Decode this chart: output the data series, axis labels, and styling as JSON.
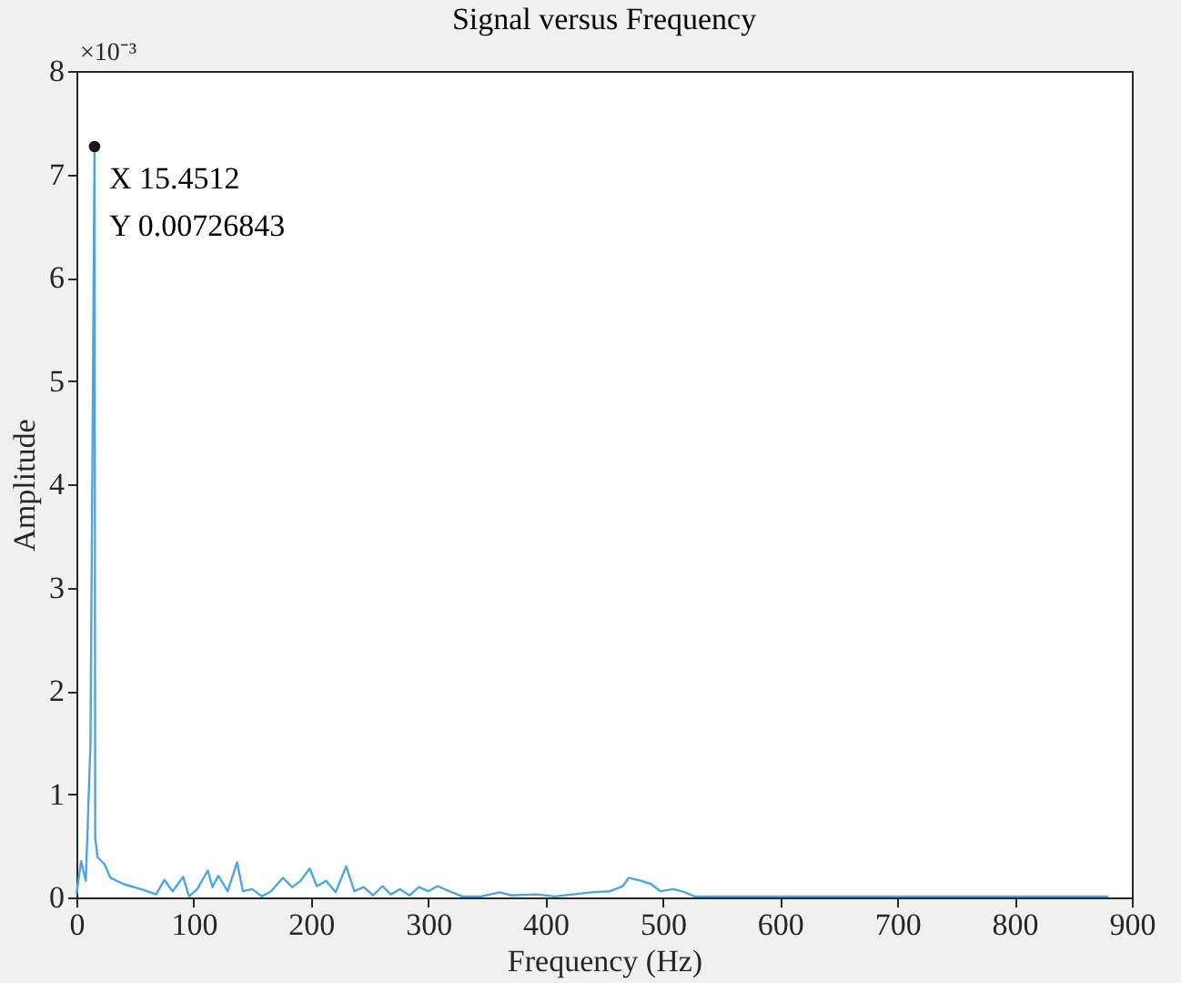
{
  "chart_data": {
    "type": "line",
    "title": "Signal versus Frequency",
    "xlabel": "Frequency (Hz)",
    "ylabel": "Amplitude",
    "series": [
      {
        "color": "#4da6dc",
        "x": [
          0,
          4,
          8,
          12,
          15.4512,
          16,
          18,
          24,
          29,
          40,
          55,
          68,
          75,
          82,
          91,
          96,
          103,
          112,
          116,
          121,
          129,
          137,
          142,
          150,
          158,
          166,
          176,
          184,
          191,
          199,
          205,
          213,
          221,
          230,
          237,
          245,
          253,
          261,
          268,
          276,
          284,
          292,
          300,
          308,
          318,
          329,
          345,
          361,
          371,
          392,
          408,
          439,
          455,
          466,
          471,
          482,
          490,
          498,
          509,
          519,
          527,
          567,
          600,
          650,
          700,
          750,
          800,
          850,
          880
        ],
        "values": [
          0.03,
          0.35,
          0.16,
          1.5,
          7.26843,
          0.58,
          0.39,
          0.32,
          0.19,
          0.13,
          0.08,
          0.03,
          0.17,
          0.06,
          0.2,
          0.01,
          0.08,
          0.26,
          0.1,
          0.21,
          0.06,
          0.34,
          0.06,
          0.08,
          0.01,
          0.06,
          0.19,
          0.1,
          0.16,
          0.28,
          0.11,
          0.16,
          0.05,
          0.3,
          0.06,
          0.1,
          0.02,
          0.11,
          0.03,
          0.08,
          0.02,
          0.1,
          0.06,
          0.11,
          0.06,
          0.01,
          0.01,
          0.05,
          0.02,
          0.03,
          0.01,
          0.05,
          0.06,
          0.11,
          0.19,
          0.16,
          0.13,
          0.06,
          0.08,
          0.05,
          0.01,
          0.01,
          0.01,
          0.01,
          0.01,
          0.01,
          0.01,
          0.01,
          0.01
        ]
      }
    ],
    "xlim": [
      0,
      900
    ],
    "xticks": [
      0,
      100,
      200,
      300,
      400,
      500,
      600,
      700,
      800,
      900
    ],
    "ylim": [
      0,
      8
    ],
    "yticks": [
      0,
      1,
      2,
      3,
      4,
      5,
      6,
      7,
      8
    ],
    "annotations": [
      "×10⁻³",
      {
        "text": "X 15.4512\nY 0.00726843",
        "x": 15.4512,
        "y": 7.26843
      }
    ],
    "grid": false,
    "marker": "none",
    "line_style": "solid"
  }
}
